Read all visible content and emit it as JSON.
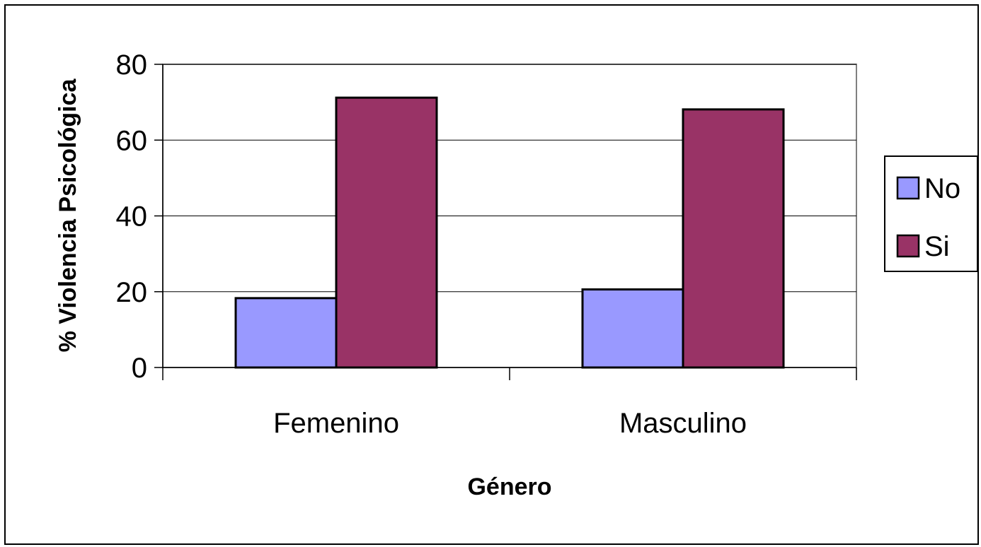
{
  "chart_data": {
    "type": "bar",
    "title": "",
    "xlabel": "Género",
    "ylabel": "% Violencia Psicológica",
    "categories": [
      "Femenino",
      "Masculino"
    ],
    "series": [
      {
        "name": "No",
        "values": [
          18.3,
          20.6
        ],
        "color": "#9999ff"
      },
      {
        "name": "Si",
        "values": [
          71.2,
          68.1
        ],
        "color": "#993366"
      }
    ],
    "ylim": [
      0,
      80
    ],
    "yticks": [
      "0",
      "20",
      "40",
      "60",
      "80"
    ],
    "grid": true,
    "legend": "right"
  }
}
